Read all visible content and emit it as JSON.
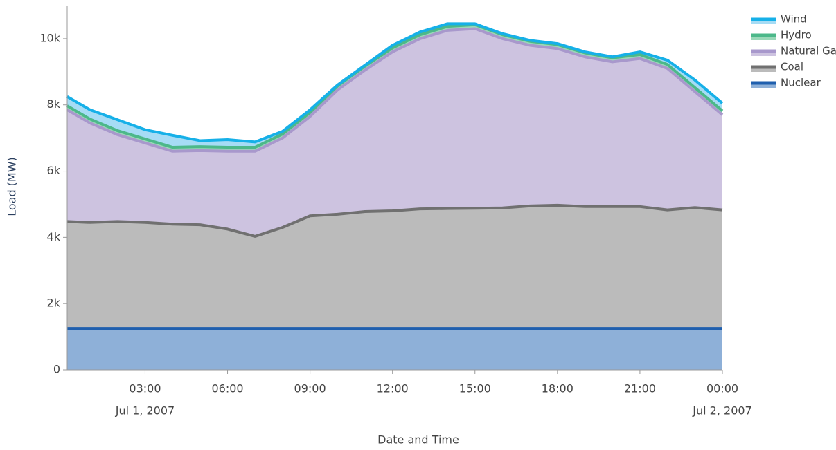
{
  "chart_data": {
    "type": "stacked-area",
    "x_label": "Date and Time",
    "y_label": "Load (MW)",
    "x": [
      "2007-07-01T00:10",
      "2007-07-01T01:00",
      "2007-07-01T02:00",
      "2007-07-01T03:00",
      "2007-07-01T04:00",
      "2007-07-01T05:00",
      "2007-07-01T06:00",
      "2007-07-01T07:00",
      "2007-07-01T08:00",
      "2007-07-01T09:00",
      "2007-07-01T10:00",
      "2007-07-01T11:00",
      "2007-07-01T12:00",
      "2007-07-01T13:00",
      "2007-07-01T14:00",
      "2007-07-01T15:00",
      "2007-07-01T16:00",
      "2007-07-01T17:00",
      "2007-07-01T18:00",
      "2007-07-01T19:00",
      "2007-07-01T20:00",
      "2007-07-01T21:00",
      "2007-07-01T22:00",
      "2007-07-01T23:00",
      "2007-07-02T00:00"
    ],
    "series": [
      {
        "name": "Nuclear",
        "color": "#1f5fae",
        "fill": "#8eb0d8",
        "values": [
          1250,
          1250,
          1250,
          1250,
          1250,
          1250,
          1250,
          1250,
          1250,
          1250,
          1250,
          1250,
          1250,
          1250,
          1250,
          1250,
          1250,
          1250,
          1250,
          1250,
          1250,
          1250,
          1250,
          1250,
          1250
        ]
      },
      {
        "name": "Coal",
        "color": "#707070",
        "fill": "#bbbbbb",
        "values": [
          3230,
          3200,
          3230,
          3200,
          3150,
          3130,
          3000,
          2780,
          3050,
          3400,
          3450,
          3530,
          3550,
          3610,
          3620,
          3630,
          3640,
          3700,
          3720,
          3680,
          3680,
          3680,
          3580,
          3650,
          3580
        ]
      },
      {
        "name": "Natural Gas",
        "color": "#a898cc",
        "fill": "#cdc3e0",
        "values": [
          3370,
          3000,
          2620,
          2400,
          2200,
          2240,
          2350,
          2570,
          2700,
          3000,
          3750,
          4270,
          4800,
          5140,
          5380,
          5420,
          5110,
          4850,
          4730,
          4520,
          4370,
          4470,
          4270,
          3500,
          2870
        ]
      },
      {
        "name": "Hydro",
        "color": "#4cb88a",
        "fill": "#9ad8b8",
        "values": [
          120,
          120,
          120,
          120,
          120,
          120,
          120,
          120,
          120,
          120,
          120,
          120,
          120,
          120,
          120,
          120,
          120,
          120,
          120,
          120,
          120,
          120,
          120,
          120,
          120
        ]
      },
      {
        "name": "Wind",
        "color": "#16b0e8",
        "fill": "#a6dcf5",
        "values": [
          280,
          280,
          330,
          280,
          360,
          180,
          230,
          160,
          80,
          80,
          30,
          30,
          80,
          80,
          80,
          30,
          30,
          30,
          30,
          30,
          30,
          80,
          130,
          230,
          230
        ]
      }
    ],
    "xlim": [
      "2007-07-01T00:10",
      "2007-07-02T00:00"
    ],
    "xticks": [
      {
        "value": "2007-07-01T03:00",
        "label": "03:00",
        "sublabel": "Jul 1, 2007"
      },
      {
        "value": "2007-07-01T06:00",
        "label": "06:00"
      },
      {
        "value": "2007-07-01T09:00",
        "label": "09:00"
      },
      {
        "value": "2007-07-01T12:00",
        "label": "12:00"
      },
      {
        "value": "2007-07-01T15:00",
        "label": "15:00"
      },
      {
        "value": "2007-07-01T18:00",
        "label": "18:00"
      },
      {
        "value": "2007-07-01T21:00",
        "label": "21:00"
      },
      {
        "value": "2007-07-02T00:00",
        "label": "00:00",
        "sublabel": "Jul 2, 2007"
      }
    ],
    "ylim": [
      0,
      11000
    ],
    "yticks": [
      0,
      {
        "value": 2000,
        "label": "2k"
      },
      {
        "value": 4000,
        "label": "4k"
      },
      {
        "value": 6000,
        "label": "6k"
      },
      {
        "value": 8000,
        "label": "8k"
      },
      {
        "value": 10000,
        "label": "10k"
      }
    ],
    "legend": "top-right"
  }
}
